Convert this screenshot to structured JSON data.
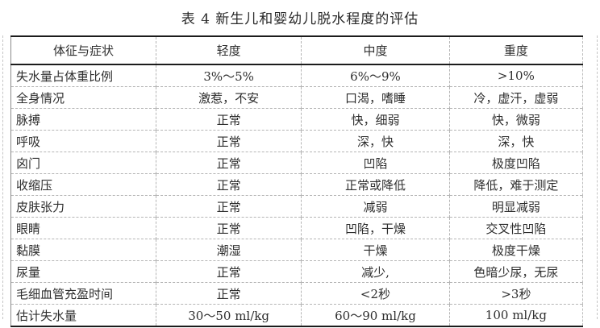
{
  "title": "表 4 新生儿和婴幼儿脱水程度的评估",
  "table": {
    "headers": [
      "体征与症状",
      "轻度",
      "中度",
      "重度"
    ],
    "rows": [
      [
        "失水量占体重比例",
        "3%～5%",
        "6%～9%",
        ">10%"
      ],
      [
        "全身情况",
        "激惹，不安",
        "口渴，嗜睡",
        "冷，虚汗，虚弱"
      ],
      [
        "脉搏",
        "正常",
        "快，细弱",
        "快，微弱"
      ],
      [
        "呼吸",
        "正常",
        "深，快",
        "深，快"
      ],
      [
        "囟门",
        "正常",
        "凹陷",
        "极度凹陷"
      ],
      [
        "收缩压",
        "正常",
        "正常或降低",
        "降低，难于测定"
      ],
      [
        "皮肤张力",
        "正常",
        "减弱",
        "明显减弱"
      ],
      [
        "眼睛",
        "正常",
        "凹陷，干燥",
        "交叉性凹陷"
      ],
      [
        "黏膜",
        "潮湿",
        "干燥",
        "极度干燥"
      ],
      [
        "尿量",
        "正常",
        "减少,",
        "色暗少尿，无尿"
      ],
      [
        "毛细血管充盈时间",
        "正常",
        "<2秒",
        ">3秒"
      ],
      [
        "估计失水量",
        "30～50 ml/kg",
        "60～90 ml/kg",
        "100 ml/kg"
      ]
    ]
  },
  "colors": {
    "text": "#2e2e2e",
    "solid_border": "#1c1c1c",
    "dashed_gridline": "#b5b5b5",
    "background": "#ffffff"
  }
}
